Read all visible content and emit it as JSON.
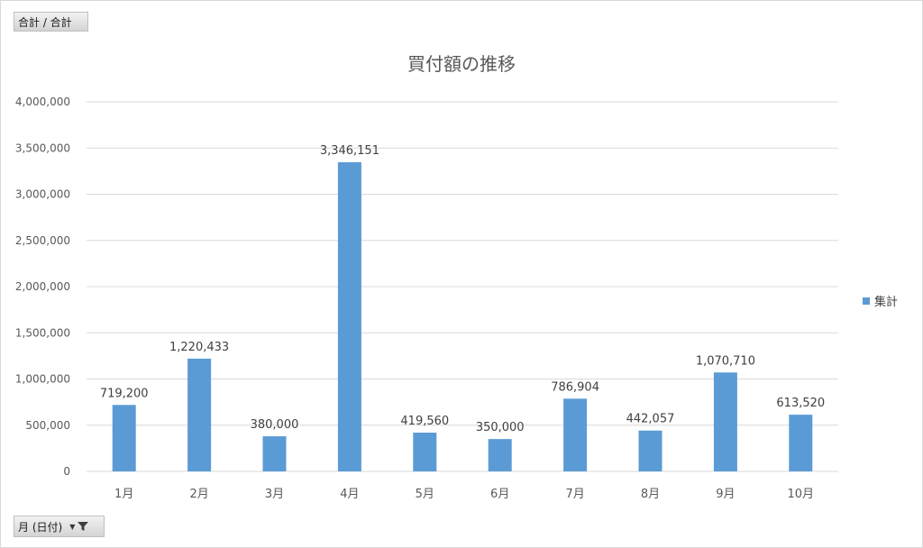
{
  "field_buttons": {
    "values_label": "合計 / 合計",
    "axis_label": "月 (日付)"
  },
  "icons": {
    "dropdown": "chevron-down-icon",
    "filter": "funnel-icon"
  },
  "colors": {
    "bar": "#5b9bd5",
    "gridline": "#d9d9d9",
    "axis_text": "#595959",
    "label_text": "#404040"
  },
  "chart_data": {
    "type": "bar",
    "title": "買付額の推移",
    "categories": [
      "1月",
      "2月",
      "3月",
      "4月",
      "5月",
      "6月",
      "7月",
      "8月",
      "9月",
      "10月"
    ],
    "series": [
      {
        "name": "集計",
        "values": [
          719200,
          1220433,
          380000,
          3346151,
          419560,
          350000,
          786904,
          442057,
          1070710,
          613520
        ],
        "labels": [
          "719,200",
          "1,220,433",
          "380,000",
          "3,346,151",
          "419,560",
          "350,000",
          "786,904",
          "442,057",
          "1,070,710",
          "613,520"
        ]
      }
    ],
    "ylim": [
      0,
      4000000
    ],
    "yticks": [
      0,
      500000,
      1000000,
      1500000,
      2000000,
      2500000,
      3000000,
      3500000,
      4000000
    ],
    "ytick_labels": [
      "0",
      "500,000",
      "1,000,000",
      "1,500,000",
      "2,000,000",
      "2,500,000",
      "3,000,000",
      "3,500,000",
      "4,000,000"
    ],
    "grid": true,
    "legend_position": "right"
  }
}
